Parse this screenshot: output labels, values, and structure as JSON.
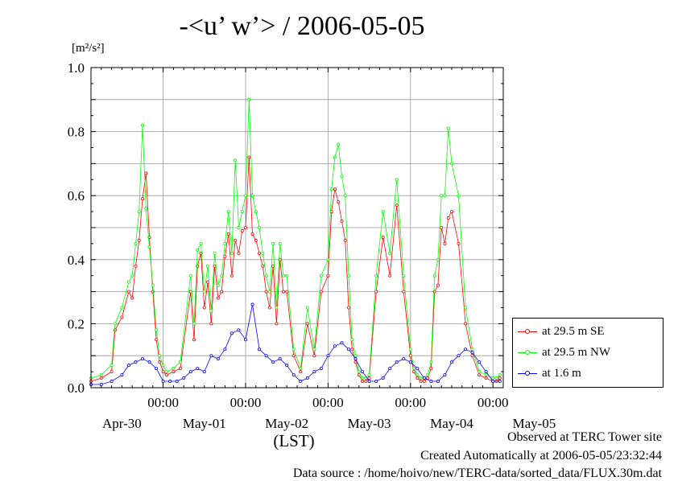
{
  "title": "-<u’ w’> / 2006-05-05",
  "unit_label": "[m²/s²]",
  "xlabel": "(LST)",
  "footer": {
    "line1": "Observed at TERC Tower site",
    "line2": "Created Automatically at 2006-05-05/23:32:44",
    "line3": "Data source : /home/hoivo/new/TERC-data/sorted_data/FLUX.30m.dat"
  },
  "chart_data": {
    "type": "line",
    "ylim": [
      0,
      1.0
    ],
    "y_ticks": [
      "0.0",
      "0.2",
      "0.4",
      "0.6",
      "0.8",
      "1.0"
    ],
    "y_tick_values": [
      0,
      0.2,
      0.4,
      0.6,
      0.8,
      1.0
    ],
    "xlim_hours": [
      -21,
      99
    ],
    "x_time_ticks": [
      "00:00",
      "00:00",
      "00:00",
      "00:00",
      "00:00"
    ],
    "x_time_tick_hours": [
      0,
      24,
      48,
      72,
      96
    ],
    "x_date_labels": [
      "Apr-30",
      "May-01",
      "May-02",
      "May-03",
      "May-04",
      "May-05"
    ],
    "x_date_label_hours": [
      -12,
      12,
      36,
      60,
      84,
      108
    ],
    "grid": true,
    "legend_position": "right",
    "colors": {
      "se": "#ff0000",
      "nw": "#00ff00",
      "low": "#0000ff"
    },
    "series": [
      {
        "name": "at 29.5 m SE",
        "color": "#ff0000",
        "x": [
          -21,
          -18,
          -15,
          -14,
          -12,
          -10,
          -9,
          -8,
          -7,
          -6,
          -5,
          -4,
          -3,
          -2,
          -1,
          0,
          1,
          3,
          5,
          8,
          9,
          10,
          11,
          12,
          13,
          14,
          15,
          16,
          17,
          18,
          19,
          20,
          21,
          22,
          23,
          24,
          25,
          26,
          27,
          28,
          29,
          30,
          31,
          32,
          33,
          34,
          35,
          36,
          38,
          40,
          42,
          44,
          46,
          48,
          49,
          50,
          51,
          52,
          53,
          54,
          55,
          56,
          57,
          58,
          59,
          60,
          62,
          64,
          66,
          68,
          70,
          72,
          73,
          74,
          75,
          76,
          77,
          78,
          79,
          80,
          81,
          82,
          83,
          84,
          86,
          88,
          90,
          92,
          94,
          96,
          97,
          98
        ],
        "y": [
          0.02,
          0.03,
          0.05,
          0.18,
          0.22,
          0.3,
          0.28,
          0.38,
          0.46,
          0.59,
          0.67,
          0.47,
          0.3,
          0.15,
          0.08,
          0.05,
          0.04,
          0.05,
          0.06,
          0.3,
          0.15,
          0.38,
          0.42,
          0.25,
          0.33,
          0.2,
          0.38,
          0.28,
          0.3,
          0.41,
          0.48,
          0.35,
          0.46,
          0.42,
          0.49,
          0.5,
          0.72,
          0.48,
          0.46,
          0.42,
          0.38,
          0.3,
          0.25,
          0.38,
          0.2,
          0.4,
          0.3,
          0.3,
          0.1,
          0.05,
          0.2,
          0.1,
          0.3,
          0.35,
          0.55,
          0.62,
          0.58,
          0.52,
          0.46,
          0.25,
          0.12,
          0.08,
          0.04,
          0.02,
          0.02,
          0.03,
          0.3,
          0.47,
          0.35,
          0.57,
          0.3,
          0.1,
          0.05,
          0.03,
          0.02,
          0.02,
          0.03,
          0.06,
          0.3,
          0.32,
          0.5,
          0.45,
          0.53,
          0.55,
          0.45,
          0.2,
          0.1,
          0.04,
          0.03,
          0.02,
          0.02,
          0.03
        ]
      },
      {
        "name": "at 29.5 m NW",
        "color": "#00ff00",
        "x": [
          -21,
          -18,
          -15,
          -14,
          -12,
          -10,
          -9,
          -8,
          -7,
          -6,
          -5,
          -4,
          -3,
          -2,
          -1,
          0,
          1,
          3,
          5,
          8,
          9,
          10,
          11,
          12,
          13,
          14,
          15,
          16,
          17,
          18,
          19,
          20,
          21,
          22,
          23,
          24,
          25,
          26,
          27,
          28,
          29,
          30,
          31,
          32,
          33,
          34,
          35,
          36,
          38,
          40,
          42,
          44,
          46,
          48,
          49,
          50,
          51,
          52,
          53,
          54,
          55,
          56,
          57,
          58,
          59,
          60,
          62,
          64,
          66,
          68,
          70,
          72,
          73,
          74,
          75,
          76,
          77,
          78,
          79,
          80,
          81,
          82,
          83,
          84,
          86,
          88,
          90,
          92,
          94,
          96,
          97,
          98
        ],
        "y": [
          0.03,
          0.04,
          0.07,
          0.2,
          0.25,
          0.33,
          0.35,
          0.45,
          0.55,
          0.82,
          0.56,
          0.44,
          0.32,
          0.18,
          0.1,
          0.07,
          0.05,
          0.06,
          0.08,
          0.35,
          0.2,
          0.43,
          0.45,
          0.3,
          0.38,
          0.24,
          0.42,
          0.32,
          0.35,
          0.45,
          0.55,
          0.42,
          0.71,
          0.5,
          0.55,
          0.6,
          0.9,
          0.6,
          0.55,
          0.5,
          0.42,
          0.35,
          0.3,
          0.45,
          0.25,
          0.45,
          0.35,
          0.35,
          0.12,
          0.06,
          0.25,
          0.12,
          0.35,
          0.4,
          0.62,
          0.72,
          0.76,
          0.66,
          0.6,
          0.35,
          0.15,
          0.1,
          0.05,
          0.03,
          0.03,
          0.04,
          0.35,
          0.55,
          0.42,
          0.65,
          0.35,
          0.12,
          0.06,
          0.04,
          0.03,
          0.03,
          0.04,
          0.08,
          0.35,
          0.4,
          0.6,
          0.6,
          0.81,
          0.7,
          0.6,
          0.25,
          0.12,
          0.05,
          0.04,
          0.03,
          0.03,
          0.04
        ]
      },
      {
        "name": "at 1.6 m",
        "color": "#0000ff",
        "x": [
          -21,
          -18,
          -15,
          -12,
          -10,
          -8,
          -6,
          -4,
          -2,
          0,
          2,
          4,
          6,
          8,
          10,
          12,
          14,
          16,
          18,
          20,
          22,
          24,
          26,
          28,
          30,
          32,
          34,
          36,
          38,
          40,
          42,
          44,
          46,
          48,
          50,
          52,
          54,
          56,
          58,
          60,
          62,
          64,
          66,
          68,
          70,
          72,
          74,
          76,
          78,
          80,
          82,
          84,
          86,
          88,
          90,
          92,
          94,
          96,
          98
        ],
        "y": [
          0.01,
          0.01,
          0.02,
          0.04,
          0.07,
          0.08,
          0.09,
          0.08,
          0.06,
          0.02,
          0.02,
          0.02,
          0.03,
          0.05,
          0.06,
          0.05,
          0.1,
          0.09,
          0.12,
          0.17,
          0.18,
          0.15,
          0.26,
          0.12,
          0.1,
          0.08,
          0.09,
          0.07,
          0.04,
          0.02,
          0.03,
          0.05,
          0.06,
          0.1,
          0.13,
          0.14,
          0.12,
          0.09,
          0.05,
          0.02,
          0.02,
          0.03,
          0.06,
          0.08,
          0.09,
          0.08,
          0.06,
          0.03,
          0.02,
          0.02,
          0.04,
          0.08,
          0.1,
          0.12,
          0.11,
          0.08,
          0.05,
          0.02,
          0.02
        ]
      }
    ]
  }
}
